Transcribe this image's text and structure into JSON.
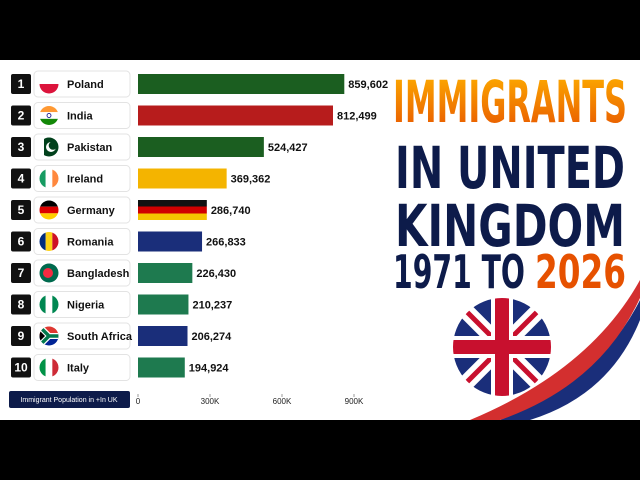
{
  "chart_data": {
    "type": "bar",
    "orientation": "horizontal",
    "title": [
      "IMMIGRANTS",
      "IN UNITED",
      "KINGDOM"
    ],
    "subtitle": [
      "1971 TO",
      "2026"
    ],
    "axis_label": "Immigrant Population in +In UK",
    "ranks": [
      1,
      2,
      3,
      4,
      5,
      6,
      7,
      8,
      9,
      10
    ],
    "categories": [
      "Poland",
      "India",
      "Pakistan",
      "Ireland",
      "Germany",
      "Romania",
      "Bangladesh",
      "Nigeria",
      "South Africa",
      "Italy"
    ],
    "values": [
      859602,
      812499,
      524427,
      369362,
      286740,
      266833,
      226430,
      210237,
      206274,
      194924
    ],
    "value_labels": [
      "859,602",
      "812,499",
      "524,427",
      "369,362",
      "286,740",
      "266,833",
      "226,430",
      "210,237",
      "206,274",
      "194,924"
    ],
    "colors": [
      "#1b5e20",
      "#b71c1c",
      "#1b5e20",
      "#f4b400",
      [
        "#111111",
        "#d00000",
        "#f5c400"
      ],
      "#1a2e7a",
      "#1e7a4f",
      "#1e7a4f",
      "#1a2e7a",
      "#1e7a4f"
    ],
    "xlim": [
      0,
      900000
    ],
    "xticks": [
      0,
      {
        "value": 300000,
        "label": "300K"
      },
      {
        "value": 600000,
        "label": "600K"
      },
      {
        "value": 900000,
        "label": "900K"
      }
    ]
  }
}
